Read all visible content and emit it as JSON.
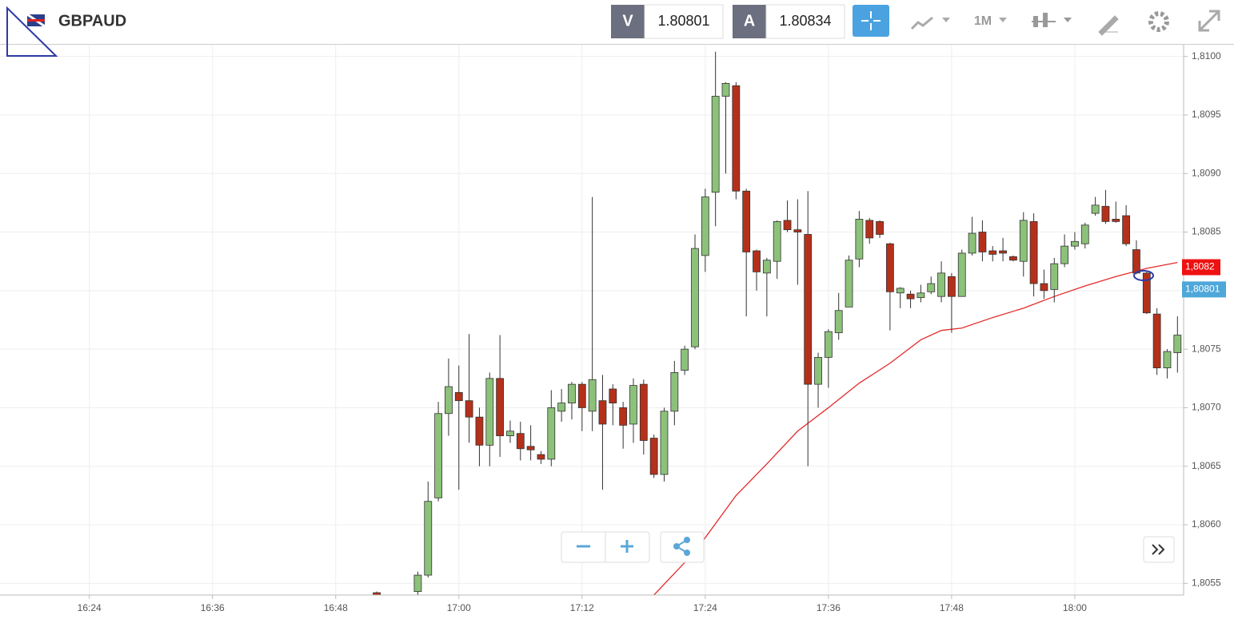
{
  "header": {
    "symbol": "GBPAUD",
    "bid_label": "V",
    "bid": 1.80801,
    "ask_label": "A",
    "ask": 1.80834,
    "timeframe": "1M"
  },
  "chart_data": {
    "type": "candlestick",
    "x": [
      1012,
      1016,
      1017,
      1018,
      1019,
      1020,
      1021,
      1022,
      1023,
      1024,
      1025,
      1026,
      1027,
      1028,
      1029,
      1030,
      1031,
      1032,
      1033,
      1034,
      1035,
      1036,
      1037,
      1038,
      1039,
      1040,
      1041,
      1042,
      1043,
      1044,
      1045,
      1046,
      1047,
      1048,
      1049,
      1050,
      1051,
      1052,
      1053,
      1054,
      1055,
      1056,
      1057,
      1058,
      1059,
      1060,
      1061,
      1062,
      1063,
      1064,
      1065,
      1066,
      1067,
      1068,
      1069,
      1070,
      1071,
      1072,
      1073,
      1074,
      1075,
      1076,
      1077,
      1078,
      1079,
      1080,
      1081,
      1082,
      1083,
      1084,
      1085,
      1086,
      1087,
      1088,
      1089,
      1090
    ],
    "open": [
      1.80542,
      1.80543,
      1.80557,
      1.80623,
      1.80695,
      1.80713,
      1.80706,
      1.80692,
      1.80668,
      1.80725,
      1.80676,
      1.80678,
      1.80667,
      1.8066,
      1.80656,
      1.80697,
      1.80704,
      1.8072,
      1.80697,
      1.80706,
      1.80716,
      1.807,
      1.80686,
      1.8072,
      1.80674,
      1.80643,
      1.80697,
      1.80732,
      1.80752,
      1.8083,
      1.80884,
      1.80966,
      1.80975,
      1.80885,
      1.80834,
      1.80815,
      1.80825,
      1.8086,
      1.80852,
      1.80848,
      1.8072,
      1.80743,
      1.80764,
      1.80786,
      1.80827,
      1.8086,
      1.80859,
      1.8084,
      1.80798,
      1.80797,
      1.80794,
      1.80799,
      1.80795,
      1.80812,
      1.80795,
      1.80832,
      1.8085,
      1.80834,
      1.80834,
      1.80829,
      1.80825,
      1.80859,
      1.80806,
      1.80801,
      1.80823,
      1.80838,
      1.8084,
      1.80866,
      1.80872,
      1.80861,
      1.80864,
      1.80835,
      1.80815,
      1.8078,
      1.80734,
      1.80747
    ],
    "high": [
      1.80543,
      1.8056,
      1.80637,
      1.80705,
      1.80742,
      1.80736,
      1.80763,
      1.807,
      1.8073,
      1.80762,
      1.80689,
      1.80688,
      1.80685,
      1.80663,
      1.80715,
      1.80716,
      1.80722,
      1.80722,
      1.8088,
      1.80728,
      1.8072,
      1.80705,
      1.80725,
      1.80724,
      1.80677,
      1.807,
      1.8074,
      1.80753,
      1.80848,
      1.80887,
      1.81004,
      1.80978,
      1.80978,
      1.80887,
      1.80835,
      1.80828,
      1.8086,
      1.80877,
      1.80878,
      1.80885,
      1.80747,
      1.80767,
      1.80798,
      1.8083,
      1.80868,
      1.80862,
      1.8086,
      1.80841,
      1.80803,
      1.808,
      1.80805,
      1.80812,
      1.80825,
      1.80815,
      1.80835,
      1.80863,
      1.8086,
      1.80838,
      1.80845,
      1.8083,
      1.80867,
      1.80866,
      1.80818,
      1.80828,
      1.80848,
      1.8085,
      1.80858,
      1.8088,
      1.80886,
      1.80876,
      1.80873,
      1.80843,
      1.80816,
      1.80785,
      1.8075,
      1.80778
    ],
    "low": [
      1.80539,
      1.8054,
      1.80555,
      1.8062,
      1.80676,
      1.8063,
      1.8067,
      1.8065,
      1.8065,
      1.80658,
      1.8067,
      1.80655,
      1.80655,
      1.80652,
      1.8065,
      1.80688,
      1.8069,
      1.8068,
      1.8068,
      1.8063,
      1.80685,
      1.80665,
      1.8067,
      1.8066,
      1.8064,
      1.80637,
      1.80685,
      1.80728,
      1.8075,
      1.80816,
      1.80855,
      1.809,
      1.80878,
      1.80778,
      1.808,
      1.80778,
      1.8081,
      1.8085,
      1.80805,
      1.8065,
      1.807,
      1.80717,
      1.80758,
      1.80786,
      1.8082,
      1.8084,
      1.80845,
      1.80766,
      1.80785,
      1.80785,
      1.8079,
      1.80797,
      1.8079,
      1.80764,
      1.80795,
      1.8083,
      1.80825,
      1.80825,
      1.80825,
      1.80825,
      1.80812,
      1.80795,
      1.80793,
      1.8079,
      1.8082,
      1.80835,
      1.80836,
      1.80864,
      1.80857,
      1.80858,
      1.80838,
      1.80814,
      1.8078,
      1.80728,
      1.80725,
      1.8073
    ],
    "close": [
      1.8054,
      1.80557,
      1.8062,
      1.80695,
      1.80718,
      1.80706,
      1.80692,
      1.80668,
      1.80725,
      1.80676,
      1.8068,
      1.80665,
      1.80664,
      1.80656,
      1.807,
      1.80704,
      1.8072,
      1.807,
      1.80724,
      1.80686,
      1.80704,
      1.80685,
      1.80719,
      1.80672,
      1.80643,
      1.80697,
      1.8073,
      1.8075,
      1.80836,
      1.8088,
      1.80966,
      1.80977,
      1.80885,
      1.80833,
      1.80816,
      1.80826,
      1.80859,
      1.80852,
      1.8085,
      1.8072,
      1.80743,
      1.80765,
      1.80783,
      1.80826,
      1.80861,
      1.80845,
      1.80848,
      1.80799,
      1.80802,
      1.80793,
      1.80798,
      1.80806,
      1.80815,
      1.80795,
      1.80832,
      1.80849,
      1.80833,
      1.80831,
      1.80832,
      1.80826,
      1.8086,
      1.80806,
      1.808,
      1.80823,
      1.80838,
      1.80842,
      1.80856,
      1.80873,
      1.80859,
      1.80859,
      1.8084,
      1.80815,
      1.80781,
      1.80734,
      1.80748,
      1.80762
    ],
    "up_color": "#8cc17a",
    "down_color": "#b5301a",
    "overlay": {
      "type": "line",
      "color": "#e32b2b",
      "x": [
        1039,
        1043,
        1047,
        1050,
        1053,
        1056,
        1059,
        1062,
        1065,
        1067,
        1069,
        1072,
        1075,
        1078,
        1081,
        1084,
        1087,
        1090
      ],
      "values": [
        1.8054,
        1.80577,
        1.80625,
        1.80652,
        1.8068,
        1.807,
        1.80721,
        1.80738,
        1.80758,
        1.80766,
        1.80768,
        1.80777,
        1.80785,
        1.80795,
        1.80804,
        1.80812,
        1.80819,
        1.80824
      ]
    },
    "xlim": [
      975.3,
      1090.6
    ],
    "ylim": [
      1.8054,
      1.8101
    ],
    "xticks": [
      {
        "value": 984,
        "label": "16:24"
      },
      {
        "value": 996,
        "label": "16:36"
      },
      {
        "value": 1008,
        "label": "16:48"
      },
      {
        "value": 1020,
        "label": "17:00"
      },
      {
        "value": 1032,
        "label": "17:12"
      },
      {
        "value": 1044,
        "label": "17:24"
      },
      {
        "value": 1056,
        "label": "17:36"
      },
      {
        "value": 1068,
        "label": "17:48"
      },
      {
        "value": 1080,
        "label": "18:00"
      }
    ],
    "yticks": [
      {
        "value": 1.8055,
        "label": "1,8055"
      },
      {
        "value": 1.806,
        "label": "1,8060"
      },
      {
        "value": 1.8065,
        "label": "1,8065"
      },
      {
        "value": 1.807,
        "label": "1,8070"
      },
      {
        "value": 1.8075,
        "label": "1,8075"
      },
      {
        "value": 1.808,
        "label": "1,8080"
      },
      {
        "value": 1.8085,
        "label": "1,8085"
      },
      {
        "value": 1.809,
        "label": "1,8090"
      },
      {
        "value": 1.8095,
        "label": "1,8095"
      },
      {
        "value": 1.81,
        "label": "1,8100"
      }
    ],
    "grid": true,
    "price_markers": [
      {
        "value": 1.8082,
        "label": "1,8082",
        "color": "#ee1111"
      },
      {
        "value": 1.80801,
        "label": "1,80801",
        "color": "#4ea7d9"
      }
    ]
  }
}
